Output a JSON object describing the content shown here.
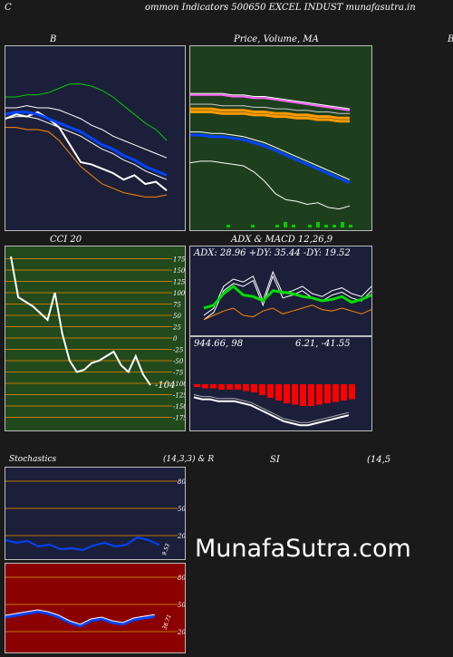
{
  "header": {
    "left_fragment": "C",
    "title": "ommon  Indicators 500650  EXCEL INDUST munafasutra.in",
    "right_fragment": "B"
  },
  "panels": {
    "b": {
      "title": "B"
    },
    "price": {
      "title_parts": [
        "Price,",
        "Volume,",
        "MA"
      ]
    },
    "cci": {
      "title": "CCI 20",
      "current_label": "-104",
      "ticks": [
        "175",
        "150",
        "125",
        "100",
        "75",
        "50",
        "25",
        "0",
        "-25",
        "-50",
        "-75",
        "-100",
        "-125",
        "-150",
        "-175"
      ]
    },
    "adx": {
      "title": "ADX  & MACD 12,26,9",
      "readout": "ADX: 28.96  +DY: 35.44  -DY: 19.52"
    },
    "macd": {
      "readout_left": "944.66,  98",
      "readout_right": "6.21,  -41.55"
    },
    "stoch": {
      "title_left": "Stochastics",
      "title_right": "(14,3,3) & R",
      "ticks": [
        "80",
        "50",
        "20"
      ],
      "value_label": "9.53"
    },
    "rsi": {
      "title_left": "SI",
      "title_right": "(14,5",
      "ticks": [
        "80",
        "50",
        "20"
      ],
      "value_label": "36.71"
    }
  },
  "watermark": "MunafaSutra.com",
  "colors": {
    "navy": "#1c1f3a",
    "green_panel": "#1e3f1e",
    "red_panel": "#8b0000",
    "cci_panel": "#224a1c",
    "macd_hist": "#ff0000",
    "adx_line": "#00dd00",
    "price_line": "#ffffff",
    "ma_orange": "#ff9900"
  },
  "chart_data": [
    {
      "type": "line",
      "name": "Bollinger",
      "series": [
        {
          "values": [
            50,
            52,
            51,
            53,
            50,
            46,
            38,
            30,
            29,
            27,
            25,
            22,
            24,
            20,
            21,
            17
          ]
        },
        {
          "values": [
            52,
            53,
            53,
            52,
            50,
            48,
            46,
            44,
            41,
            38,
            36,
            33,
            31,
            28,
            26,
            24
          ]
        },
        {
          "values": [
            55,
            55,
            56,
            55,
            55,
            54,
            52,
            50,
            47,
            45,
            42,
            40,
            38,
            36,
            34,
            32
          ]
        },
        {
          "values": [
            60,
            60,
            61,
            61,
            62,
            64,
            66,
            66,
            65,
            63,
            60,
            56,
            52,
            48,
            45,
            40
          ]
        },
        {
          "values": [
            46,
            46,
            45,
            45,
            44,
            40,
            34,
            28,
            24,
            20,
            18,
            16,
            15,
            14,
            14,
            15
          ]
        }
      ]
    },
    {
      "type": "line",
      "name": "Price MA",
      "series": [
        {
          "values": [
            42,
            43,
            43,
            42,
            41,
            40,
            36,
            30,
            22,
            18,
            17,
            15,
            16,
            13,
            12,
            14
          ]
        },
        {
          "values": [
            60,
            60,
            59,
            59,
            58,
            57,
            55,
            53,
            50,
            47,
            44,
            41,
            38,
            35,
            32,
            29
          ]
        },
        {
          "values": [
            51,
            51,
            51,
            50,
            50,
            50,
            49,
            49,
            48,
            48,
            47,
            47,
            46,
            46,
            45,
            45
          ]
        },
        {
          "values": [
            68,
            68,
            68,
            68,
            67,
            67,
            66,
            66,
            65,
            64,
            63,
            62,
            61,
            60,
            59,
            58
          ]
        }
      ],
      "volume": [
        1,
        0,
        0,
        1,
        0,
        0,
        1,
        2,
        1,
        0,
        1,
        2,
        1,
        1,
        2,
        1
      ]
    },
    {
      "type": "line",
      "name": "CCI",
      "values": [
        180,
        90,
        80,
        70,
        55,
        40,
        100,
        10,
        -50,
        -75,
        -70,
        -55,
        -50,
        -40,
        -30,
        -60,
        -75,
        -40,
        -80,
        -104
      ]
    },
    {
      "type": "line",
      "name": "ADX",
      "series": [
        {
          "values": [
            20,
            22,
            30,
            35,
            29,
            28,
            25,
            32,
            31,
            30,
            28,
            27,
            25,
            26,
            28,
            24,
            26,
            29
          ]
        },
        {
          "values": [
            15,
            20,
            35,
            40,
            38,
            42,
            25,
            45,
            30,
            32,
            35,
            30,
            28,
            32,
            34,
            30,
            28,
            35
          ]
        },
        {
          "values": [
            12,
            15,
            18,
            20,
            15,
            14,
            18,
            20,
            16,
            18,
            20,
            22,
            19,
            18,
            20,
            18,
            16,
            19
          ]
        }
      ]
    },
    {
      "type": "bar",
      "name": "MACD",
      "values": [
        -2,
        -3,
        -3,
        -4,
        -4,
        -4,
        -5,
        -6,
        -8,
        -10,
        -12,
        -14,
        -15,
        -16,
        -16,
        -15,
        -14,
        -13,
        -12,
        -11
      ]
    },
    {
      "type": "line",
      "name": "Stochastics",
      "values": [
        15,
        12,
        14,
        8,
        10,
        5,
        6,
        4,
        9,
        12,
        8,
        10,
        18,
        15,
        9.53
      ]
    },
    {
      "type": "line",
      "name": "RSI",
      "values": [
        36,
        38,
        40,
        42,
        40,
        36,
        30,
        26,
        32,
        34,
        30,
        28,
        33,
        35,
        36.71
      ]
    }
  ]
}
